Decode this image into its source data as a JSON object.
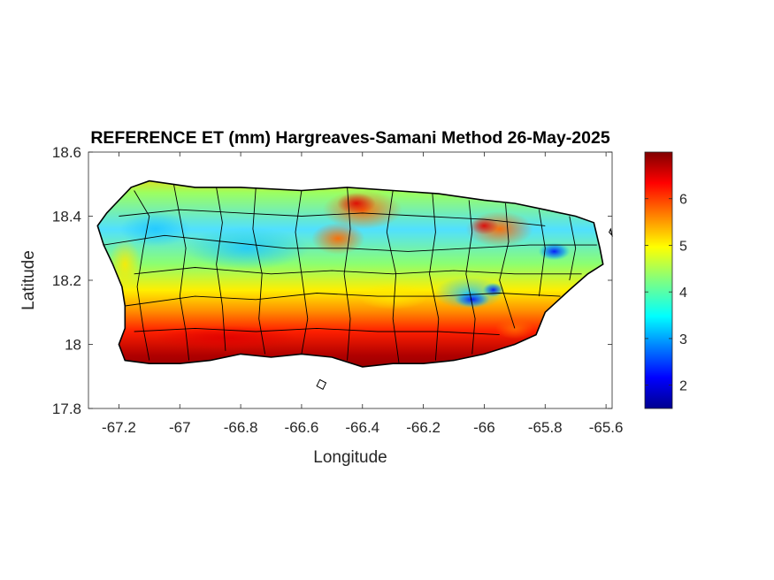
{
  "chart_data": {
    "type": "heatmap",
    "title": "REFERENCE ET (mm) Hargreaves-Samani Method  26-May-2025",
    "xlabel": "Longitude",
    "ylabel": "Latitude",
    "xlim": [
      -67.3,
      -65.58
    ],
    "ylim": [
      17.8,
      18.6
    ],
    "x_ticks": [
      {
        "value": -67.2,
        "label": "-67.2"
      },
      {
        "value": -67.0,
        "label": "-67"
      },
      {
        "value": -66.8,
        "label": "-66.8"
      },
      {
        "value": -66.6,
        "label": "-66.6"
      },
      {
        "value": -66.4,
        "label": "-66.4"
      },
      {
        "value": -66.2,
        "label": "-66.2"
      },
      {
        "value": -66.0,
        "label": "-66"
      },
      {
        "value": -65.8,
        "label": "-65.8"
      },
      {
        "value": -65.6,
        "label": "-65.6"
      }
    ],
    "y_ticks": [
      {
        "value": 17.8,
        "label": "17.8"
      },
      {
        "value": 18.0,
        "label": "18"
      },
      {
        "value": 18.2,
        "label": "18.2"
      },
      {
        "value": 18.4,
        "label": "18.4"
      },
      {
        "value": 18.6,
        "label": "18.6"
      }
    ],
    "colorbar": {
      "colormap": "jet",
      "range": [
        1.5,
        7.0
      ],
      "ticks": [
        {
          "value": 2,
          "label": "2"
        },
        {
          "value": 3,
          "label": "3"
        },
        {
          "value": 4,
          "label": "4"
        },
        {
          "value": 5,
          "label": "5"
        },
        {
          "value": 6,
          "label": "6"
        }
      ]
    },
    "island_outline": [
      [
        -67.27,
        18.37
      ],
      [
        -67.24,
        18.41
      ],
      [
        -67.2,
        18.45
      ],
      [
        -67.16,
        18.49
      ],
      [
        -67.1,
        18.51
      ],
      [
        -66.95,
        18.49
      ],
      [
        -66.8,
        18.49
      ],
      [
        -66.6,
        18.48
      ],
      [
        -66.45,
        18.49
      ],
      [
        -66.3,
        18.48
      ],
      [
        -66.15,
        18.47
      ],
      [
        -66.0,
        18.45
      ],
      [
        -65.9,
        18.44
      ],
      [
        -65.8,
        18.42
      ],
      [
        -65.7,
        18.4
      ],
      [
        -65.64,
        18.38
      ],
      [
        -65.62,
        18.3
      ],
      [
        -65.61,
        18.25
      ],
      [
        -65.66,
        18.22
      ],
      [
        -65.72,
        18.17
      ],
      [
        -65.8,
        18.1
      ],
      [
        -65.83,
        18.03
      ],
      [
        -65.9,
        18.0
      ],
      [
        -66.0,
        17.97
      ],
      [
        -66.1,
        17.95
      ],
      [
        -66.2,
        17.94
      ],
      [
        -66.3,
        17.94
      ],
      [
        -66.4,
        17.93
      ],
      [
        -66.5,
        17.96
      ],
      [
        -66.6,
        17.97
      ],
      [
        -66.7,
        17.96
      ],
      [
        -66.8,
        17.97
      ],
      [
        -66.9,
        17.95
      ],
      [
        -67.0,
        17.94
      ],
      [
        -67.1,
        17.94
      ],
      [
        -67.18,
        17.95
      ],
      [
        -67.2,
        18.0
      ],
      [
        -67.18,
        18.05
      ],
      [
        -67.18,
        18.12
      ],
      [
        -67.19,
        18.18
      ],
      [
        -67.22,
        18.25
      ],
      [
        -67.25,
        18.31
      ]
    ],
    "municipal_lines": [
      [
        [
          -67.15,
          18.48
        ],
        [
          -67.1,
          18.4
        ],
        [
          -67.12,
          18.3
        ],
        [
          -67.14,
          18.18
        ],
        [
          -67.12,
          18.05
        ],
        [
          -67.1,
          17.95
        ]
      ],
      [
        [
          -67.02,
          18.5
        ],
        [
          -67.0,
          18.4
        ],
        [
          -66.98,
          18.3
        ],
        [
          -67.0,
          18.15
        ],
        [
          -66.98,
          18.04
        ],
        [
          -66.97,
          17.95
        ]
      ],
      [
        [
          -66.88,
          18.49
        ],
        [
          -66.86,
          18.38
        ],
        [
          -66.88,
          18.25
        ],
        [
          -66.86,
          18.12
        ],
        [
          -66.85,
          17.98
        ]
      ],
      [
        [
          -66.75,
          18.49
        ],
        [
          -66.76,
          18.36
        ],
        [
          -66.73,
          18.22
        ],
        [
          -66.74,
          18.08
        ],
        [
          -66.72,
          17.97
        ]
      ],
      [
        [
          -66.6,
          18.48
        ],
        [
          -66.62,
          18.35
        ],
        [
          -66.6,
          18.22
        ],
        [
          -66.58,
          18.08
        ],
        [
          -66.6,
          17.97
        ]
      ],
      [
        [
          -66.45,
          18.49
        ],
        [
          -66.44,
          18.36
        ],
        [
          -66.46,
          18.22
        ],
        [
          -66.44,
          18.08
        ],
        [
          -66.45,
          17.95
        ]
      ],
      [
        [
          -66.3,
          18.48
        ],
        [
          -66.32,
          18.35
        ],
        [
          -66.29,
          18.22
        ],
        [
          -66.3,
          18.08
        ],
        [
          -66.28,
          17.94
        ]
      ],
      [
        [
          -66.17,
          18.47
        ],
        [
          -66.16,
          18.35
        ],
        [
          -66.18,
          18.22
        ],
        [
          -66.15,
          18.08
        ],
        [
          -66.16,
          17.95
        ]
      ],
      [
        [
          -66.05,
          18.45
        ],
        [
          -66.04,
          18.35
        ],
        [
          -66.06,
          18.22
        ],
        [
          -66.03,
          18.08
        ],
        [
          -66.04,
          17.97
        ]
      ],
      [
        [
          -65.93,
          18.44
        ],
        [
          -65.92,
          18.32
        ],
        [
          -65.95,
          18.2
        ],
        [
          -65.9,
          18.05
        ]
      ],
      [
        [
          -65.82,
          18.42
        ],
        [
          -65.8,
          18.3
        ],
        [
          -65.82,
          18.15
        ]
      ],
      [
        [
          -65.72,
          18.4
        ],
        [
          -65.7,
          18.3
        ],
        [
          -65.72,
          18.2
        ]
      ],
      [
        [
          -67.25,
          18.31
        ],
        [
          -67.05,
          18.34
        ],
        [
          -66.85,
          18.32
        ],
        [
          -66.65,
          18.3
        ],
        [
          -66.45,
          18.3
        ],
        [
          -66.25,
          18.29
        ],
        [
          -66.05,
          18.3
        ],
        [
          -65.85,
          18.31
        ],
        [
          -65.63,
          18.31
        ]
      ],
      [
        [
          -67.18,
          18.12
        ],
        [
          -66.95,
          18.15
        ],
        [
          -66.75,
          18.14
        ],
        [
          -66.55,
          18.16
        ],
        [
          -66.35,
          18.15
        ],
        [
          -66.15,
          18.15
        ],
        [
          -65.95,
          18.16
        ],
        [
          -65.75,
          18.15
        ]
      ],
      [
        [
          -67.2,
          18.4
        ],
        [
          -67.0,
          18.42
        ],
        [
          -66.8,
          18.41
        ],
        [
          -66.6,
          18.4
        ],
        [
          -66.4,
          18.41
        ],
        [
          -66.2,
          18.4
        ],
        [
          -66.0,
          18.39
        ],
        [
          -65.8,
          18.37
        ]
      ],
      [
        [
          -67.15,
          18.22
        ],
        [
          -66.95,
          18.24
        ],
        [
          -66.7,
          18.22
        ],
        [
          -66.5,
          18.23
        ],
        [
          -66.3,
          18.22
        ],
        [
          -66.1,
          18.23
        ],
        [
          -65.9,
          18.22
        ],
        [
          -65.68,
          18.22
        ]
      ],
      [
        [
          -67.15,
          18.04
        ],
        [
          -66.95,
          18.05
        ],
        [
          -66.75,
          18.04
        ],
        [
          -66.55,
          18.05
        ],
        [
          -66.35,
          18.04
        ],
        [
          -66.15,
          18.04
        ],
        [
          -65.95,
          18.03
        ]
      ]
    ],
    "islets": [
      [
        [
          -66.55,
          17.87
        ],
        [
          -66.53,
          17.86
        ],
        [
          -66.52,
          17.88
        ],
        [
          -66.54,
          17.89
        ]
      ],
      [
        [
          -65.59,
          18.35
        ],
        [
          -65.58,
          18.34
        ],
        [
          -65.585,
          18.36
        ]
      ]
    ]
  }
}
